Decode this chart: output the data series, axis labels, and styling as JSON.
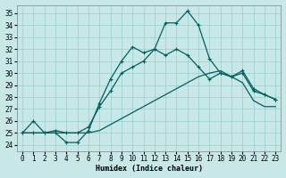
{
  "xlabel": "Humidex (Indice chaleur)",
  "bg_color": "#c8e8e8",
  "line_color": "#006060",
  "grid_color": "#99cccc",
  "xlim": [
    -0.5,
    23.5
  ],
  "ylim": [
    23.5,
    35.7
  ],
  "yticks": [
    24,
    25,
    26,
    27,
    28,
    29,
    30,
    31,
    32,
    33,
    34,
    35
  ],
  "xticks": [
    0,
    1,
    2,
    3,
    4,
    5,
    6,
    7,
    8,
    9,
    10,
    11,
    12,
    13,
    14,
    15,
    16,
    17,
    18,
    19,
    20,
    21,
    22,
    23
  ],
  "series": [
    [
      25.0,
      26.0,
      25.0,
      25.0,
      24.2,
      24.2,
      25.2,
      27.5,
      29.5,
      31.0,
      32.2,
      31.7,
      32.0,
      34.2,
      34.2,
      35.2,
      34.0,
      31.2,
      30.0,
      29.7,
      30.2,
      28.7,
      28.2,
      27.8
    ],
    [
      25.0,
      25.0,
      25.0,
      25.2,
      25.0,
      25.0,
      25.5,
      27.2,
      28.5,
      30.0,
      30.5,
      31.0,
      32.0,
      31.5,
      32.0,
      31.5,
      30.5,
      29.5,
      30.0,
      29.7,
      30.0,
      28.5,
      28.2,
      27.8
    ],
    [
      25.0,
      25.0,
      25.0,
      25.0,
      25.0,
      25.0,
      25.0,
      25.2,
      25.7,
      26.2,
      26.7,
      27.2,
      27.7,
      28.2,
      28.7,
      29.2,
      29.7,
      30.0,
      30.2,
      29.7,
      29.2,
      27.7,
      27.2,
      27.2
    ]
  ],
  "marker_series": [
    0,
    1
  ],
  "title_fontsize": 7,
  "axis_fontsize": 6,
  "tick_fontsize": 5.5,
  "linewidth": 0.9,
  "markersize": 3.0
}
